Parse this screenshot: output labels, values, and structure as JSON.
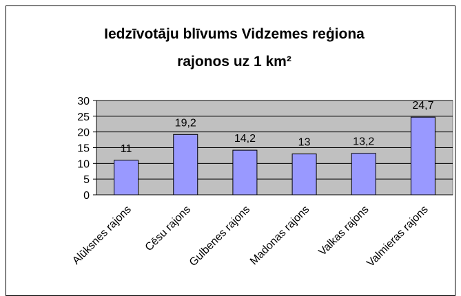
{
  "chart_data": {
    "type": "bar",
    "title": "Iedzīvotāju blīvums Vidzemes reģiona rajonos uz 1 km²",
    "categories": [
      "Alūksnes rajons",
      "Cēsu rajons",
      "Gulbenes rajons",
      "Madonas rajons",
      "Valkas rajons",
      "Valmieras rajons"
    ],
    "values": [
      11,
      19.2,
      14.2,
      13,
      13.2,
      24.7
    ],
    "value_labels": [
      "11",
      "19,2",
      "14,2",
      "13",
      "13,2",
      "24,7"
    ],
    "color": "#9999ff",
    "ylim": [
      0,
      30
    ],
    "yticks": [
      0,
      5,
      10,
      15,
      20,
      25,
      30
    ],
    "grid": true
  }
}
